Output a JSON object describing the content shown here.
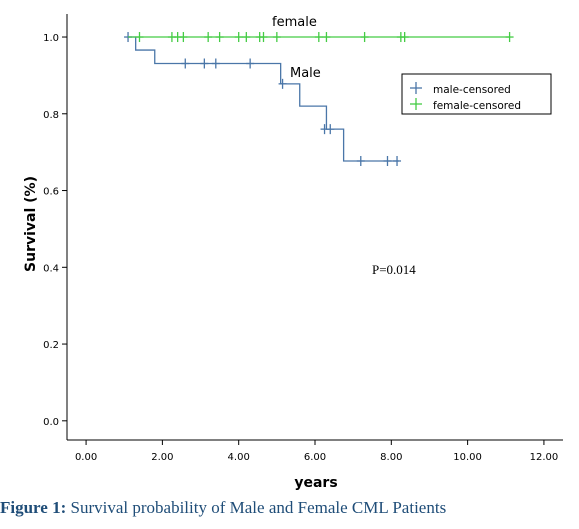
{
  "chart_data": {
    "type": "line",
    "xlabel": "years",
    "ylabel": "Survival (%)",
    "xlim": [
      -0.5,
      12.5
    ],
    "ylim": [
      -0.05,
      1.06
    ],
    "x_ticks": [
      0,
      2,
      4,
      6,
      8,
      10,
      12
    ],
    "x_tick_labels": [
      "0.00",
      "2.00",
      "4.00",
      "6.00",
      "8.00",
      "10.00",
      "12.00"
    ],
    "y_ticks": [
      0,
      0.2,
      0.4,
      0.6,
      0.8,
      1.0
    ],
    "y_tick_labels": [
      "0.0",
      "0.2",
      "0.4",
      "0.6",
      "0.8",
      "1.0"
    ],
    "grid": false,
    "legend_position": "top-right",
    "legend": [
      "male-censored",
      "female-censored"
    ],
    "p_value_text": "P=0.014",
    "series": [
      {
        "name": "Male",
        "color": "#4a76a8",
        "steps": [
          [
            1.1,
            1.0
          ],
          [
            1.3,
            0.966
          ],
          [
            1.8,
            0.931
          ],
          [
            5.1,
            0.878
          ],
          [
            5.6,
            0.82
          ],
          [
            6.3,
            0.76
          ],
          [
            6.75,
            0.677
          ],
          [
            8.2,
            0.677
          ]
        ],
        "censored": [
          [
            1.1,
            1.0
          ],
          [
            2.6,
            0.931
          ],
          [
            3.1,
            0.931
          ],
          [
            3.4,
            0.931
          ],
          [
            4.3,
            0.931
          ],
          [
            5.15,
            0.878
          ],
          [
            6.25,
            0.76
          ],
          [
            6.4,
            0.76
          ],
          [
            7.2,
            0.677
          ],
          [
            7.9,
            0.677
          ],
          [
            8.15,
            0.677
          ]
        ]
      },
      {
        "name": "female",
        "color": "#44cc44",
        "steps": [
          [
            1.1,
            1.0
          ],
          [
            11.1,
            1.0
          ]
        ],
        "censored": [
          [
            1.4,
            1.0
          ],
          [
            2.25,
            1.0
          ],
          [
            2.4,
            1.0
          ],
          [
            2.55,
            1.0
          ],
          [
            3.2,
            1.0
          ],
          [
            3.5,
            1.0
          ],
          [
            4.0,
            1.0
          ],
          [
            4.2,
            1.0
          ],
          [
            4.55,
            1.0
          ],
          [
            4.65,
            1.0
          ],
          [
            5.0,
            1.0
          ],
          [
            6.1,
            1.0
          ],
          [
            6.3,
            1.0
          ],
          [
            7.3,
            1.0
          ],
          [
            8.25,
            1.0
          ],
          [
            8.35,
            1.0
          ],
          [
            11.1,
            1.0
          ]
        ]
      }
    ]
  },
  "caption": {
    "label": "Figure 1:",
    "text": " Survival probability of Male and Female CML Patients"
  }
}
